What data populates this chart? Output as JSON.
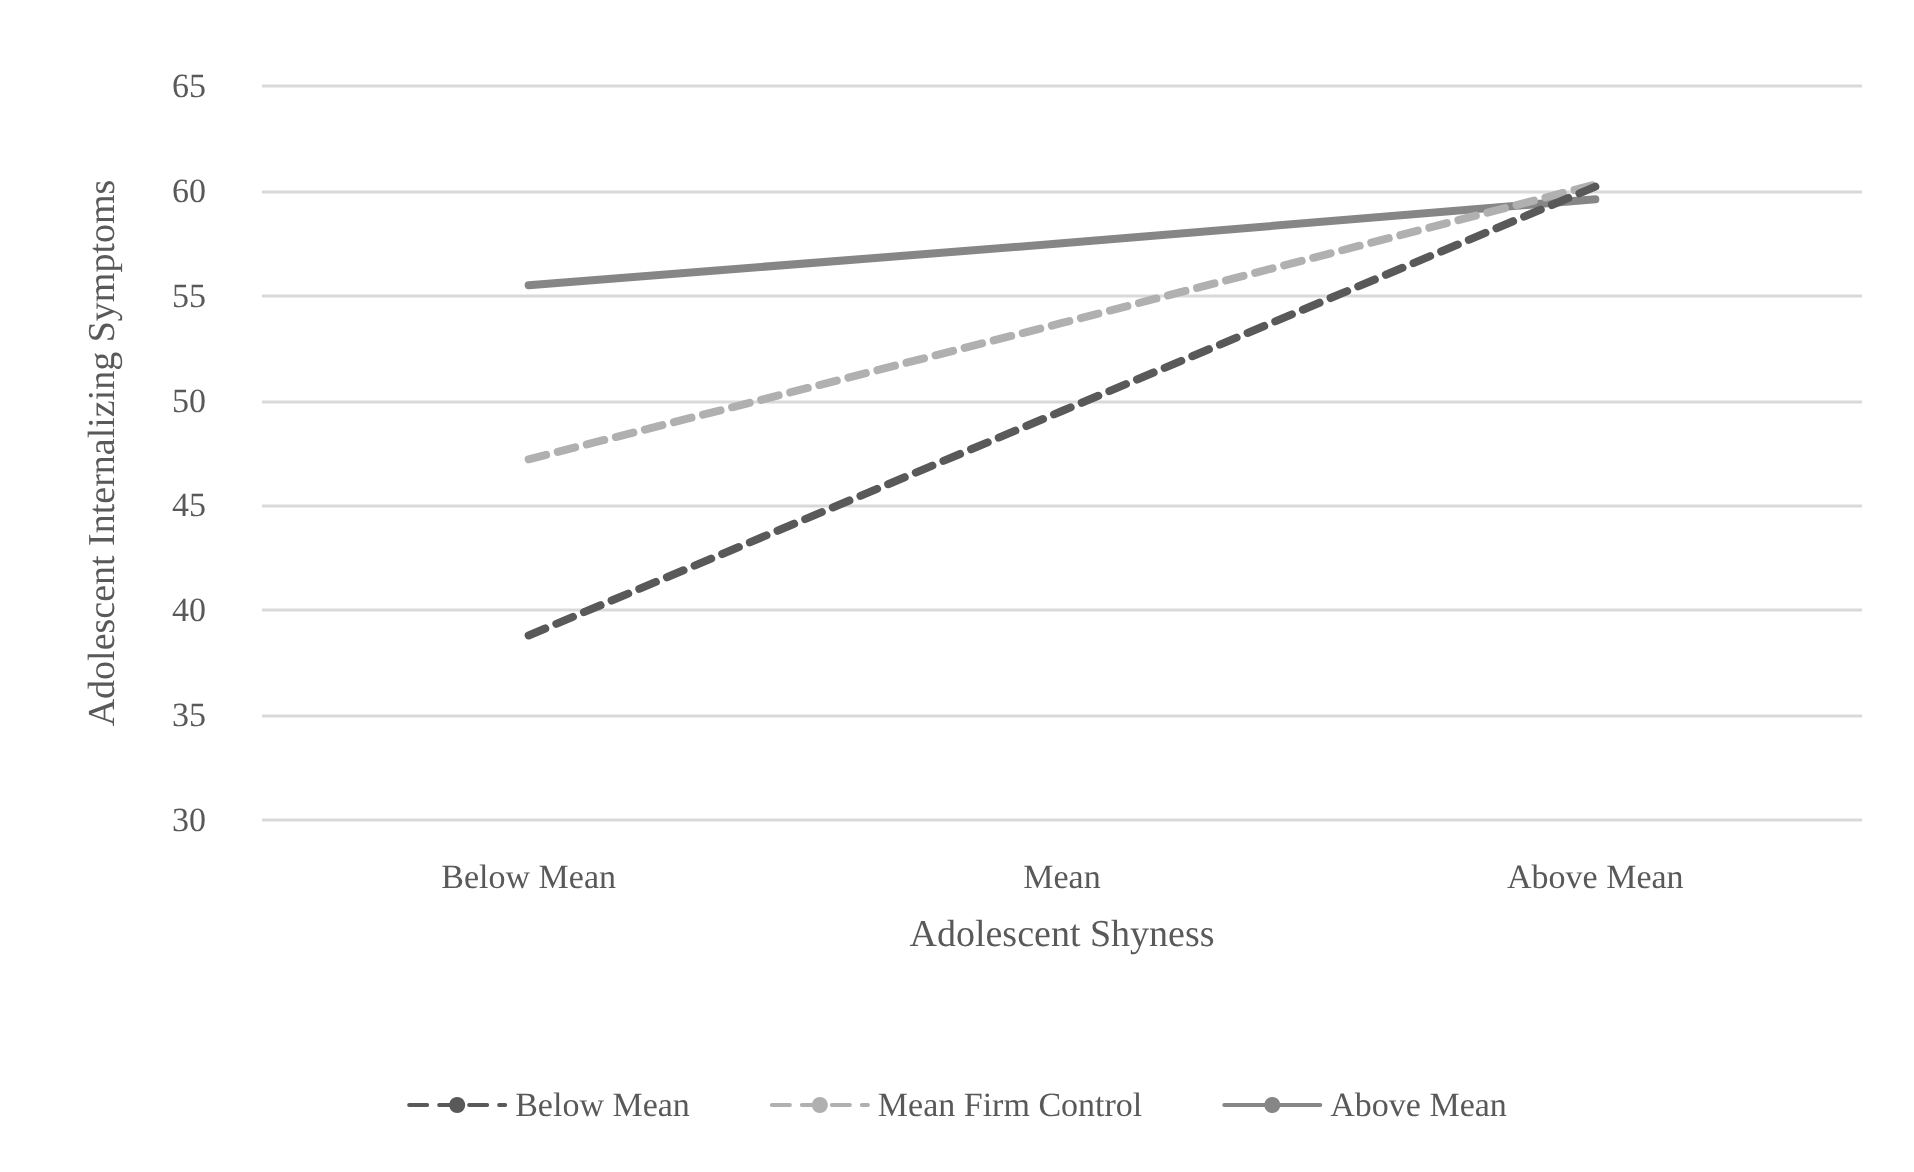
{
  "chart_data": {
    "type": "line",
    "xlabel": "Adolescent Shyness",
    "ylabel": "Adolescent Internalizing Symptoms",
    "categories": [
      "Below Mean",
      "Mean",
      "Above Mean"
    ],
    "series": [
      {
        "name": "Below Mean",
        "color": "#595959",
        "values": [
          38.8,
          49.5,
          60.2
        ],
        "line_style": "dashed"
      },
      {
        "name": "Mean Firm Control",
        "color": "#b0b0b0",
        "values": [
          47.2,
          53.7,
          60.3
        ],
        "line_style": "dashed"
      },
      {
        "name": "Above Mean",
        "color": "#868686",
        "values": [
          55.5,
          57.5,
          59.6
        ],
        "line_style": "solid"
      }
    ],
    "ylim": [
      30,
      65
    ],
    "yticks": [
      30,
      35,
      40,
      45,
      50,
      55,
      60,
      65
    ],
    "grid": "y",
    "legend": "bottom",
    "marker": "none"
  }
}
